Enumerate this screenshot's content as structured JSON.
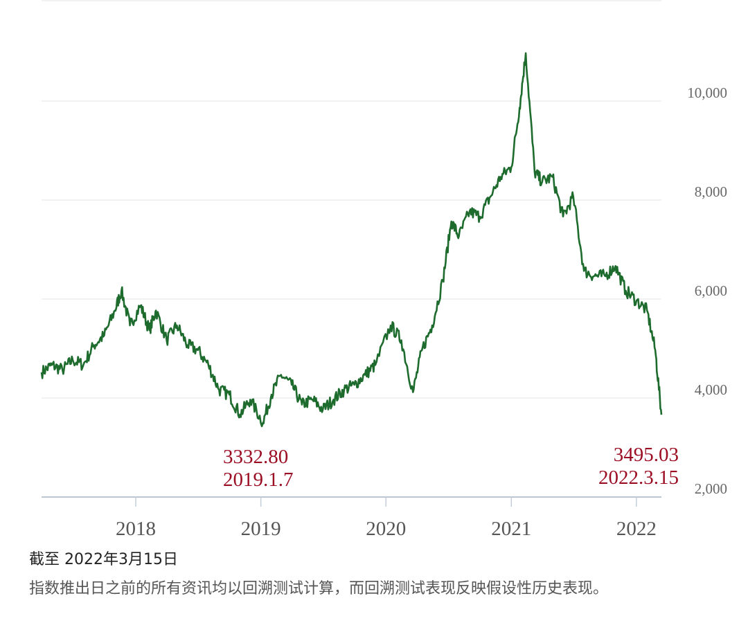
{
  "chart_data": {
    "type": "line",
    "title": "",
    "xlabel": "",
    "ylabel": "",
    "xlim": [
      "2017-04-01",
      "2022-03-15"
    ],
    "ylim": [
      2000,
      11000
    ],
    "y_ticks": [
      "2,000",
      "4,000",
      "6,000",
      "8,000",
      "10,000"
    ],
    "y_tick_values": [
      2000,
      4000,
      6000,
      8000,
      10000
    ],
    "x_ticks": [
      "2018",
      "2019",
      "2020",
      "2021",
      "2022"
    ],
    "x_tick_dates": [
      "2018-01-01",
      "2019-01-01",
      "2020-01-01",
      "2021-01-01",
      "2022-01-01"
    ],
    "line_color": "#1e6b2e",
    "grid": true,
    "series": [
      {
        "x": [
          "2017-04-01",
          "2017-05-01",
          "2017-06-01",
          "2017-07-01",
          "2017-08-01",
          "2017-09-01",
          "2017-10-01",
          "2017-11-01",
          "2017-11-20",
          "2017-12-15",
          "2018-01-15",
          "2018-02-10",
          "2018-03-01",
          "2018-04-01",
          "2018-05-01",
          "2018-06-01",
          "2018-07-01",
          "2018-08-01",
          "2018-09-01",
          "2018-10-01",
          "2018-11-01",
          "2018-12-01",
          "2019-01-07",
          "2019-02-01",
          "2019-03-01",
          "2019-04-01",
          "2019-05-01",
          "2019-06-01",
          "2019-07-01",
          "2019-08-01",
          "2019-09-01",
          "2019-10-01",
          "2019-11-01",
          "2019-12-01",
          "2020-01-15",
          "2020-02-15",
          "2020-03-20",
          "2020-04-15",
          "2020-05-15",
          "2020-06-15",
          "2020-07-10",
          "2020-08-01",
          "2020-09-01",
          "2020-10-01",
          "2020-11-01",
          "2020-12-01",
          "2021-01-01",
          "2021-01-25",
          "2021-02-12",
          "2021-03-10",
          "2021-04-01",
          "2021-05-01",
          "2021-06-01",
          "2021-07-01",
          "2021-08-01",
          "2021-09-01",
          "2021-10-01",
          "2021-11-01",
          "2021-12-01",
          "2022-01-01",
          "2022-02-01",
          "2022-02-25",
          "2022-03-15"
        ],
        "values": [
          4350,
          4500,
          4400,
          4600,
          4500,
          4900,
          5100,
          5600,
          6000,
          5300,
          5700,
          5200,
          5600,
          5000,
          5300,
          4900,
          4800,
          4500,
          4000,
          3900,
          3500,
          3800,
          3332.8,
          3900,
          4300,
          4100,
          3700,
          3800,
          3600,
          3800,
          4000,
          4100,
          4300,
          4500,
          5300,
          5000,
          3950,
          4800,
          5300,
          6200,
          7400,
          7100,
          7600,
          7500,
          7900,
          8300,
          8500,
          9700,
          10800,
          8400,
          8200,
          8300,
          7500,
          7900,
          6400,
          6300,
          6300,
          6500,
          6000,
          5800,
          5600,
          4800,
          3495.03
        ]
      }
    ],
    "annotations": [
      {
        "value": "3332.80",
        "date": "2019.1.7",
        "x": "2019-01-07",
        "y": 3332.8
      },
      {
        "value": "3495.03",
        "date": "2022.3.15",
        "x": "2022-03-15",
        "y": 3495.03
      }
    ]
  },
  "caption": {
    "as_of": "截至 2022年3月15日",
    "note": "指数推出日之前的所有资讯均以回溯测试计算，而回溯测试表现反映假设性历史表现。"
  }
}
